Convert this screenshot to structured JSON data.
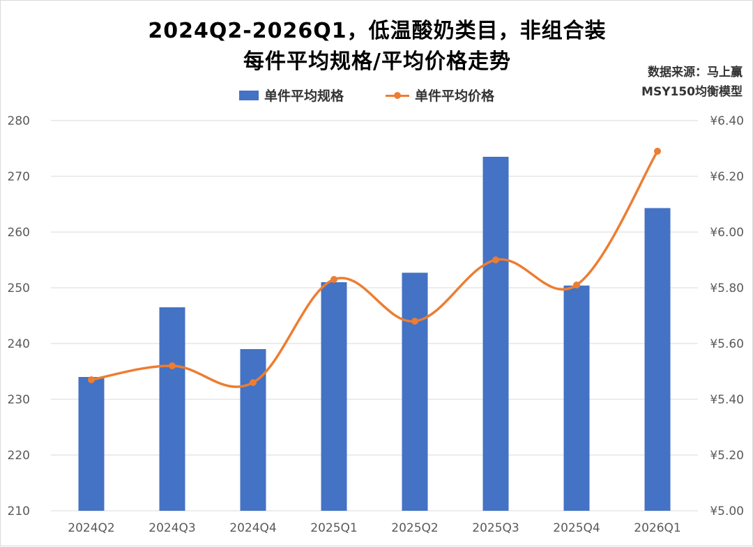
{
  "title": {
    "line1": "2024Q2-2026Q1，低温酸奶类目，非组合装",
    "line2": "每件平均规格/平均价格走势"
  },
  "source": {
    "line1": "数据来源：马上赢",
    "line2": "MSY150均衡模型"
  },
  "legend": {
    "bar_label": "单件平均规格",
    "line_label": "单件平均价格"
  },
  "colors": {
    "bar": "#4472c4",
    "line": "#ed7d31",
    "grid": "#d9d9d9",
    "tick_text": "#595959"
  },
  "chart_data": {
    "type": "bar",
    "categories": [
      "2024Q2",
      "2024Q3",
      "2024Q4",
      "2025Q1",
      "2025Q2",
      "2025Q3",
      "2025Q4",
      "2026Q1"
    ],
    "series": [
      {
        "name": "单件平均规格",
        "type": "bar",
        "axis": "left",
        "values": [
          234.0,
          246.5,
          239.0,
          251.0,
          252.7,
          273.5,
          250.4,
          264.3
        ]
      },
      {
        "name": "单件平均价格",
        "type": "line",
        "smooth": true,
        "axis": "right",
        "values": [
          5.47,
          5.52,
          5.46,
          5.83,
          5.68,
          5.9,
          5.81,
          6.29
        ]
      }
    ],
    "y_left": {
      "min": 210,
      "max": 280,
      "ticks": [
        "210",
        "220",
        "230",
        "240",
        "250",
        "260",
        "270",
        "280"
      ]
    },
    "y_right": {
      "min": 5.0,
      "max": 6.4,
      "ticks": [
        "¥5.00",
        "¥5.20",
        "¥5.40",
        "¥5.60",
        "¥5.80",
        "¥6.00",
        "¥6.20",
        "¥6.40"
      ]
    },
    "grid": true,
    "legend_position": "top"
  }
}
